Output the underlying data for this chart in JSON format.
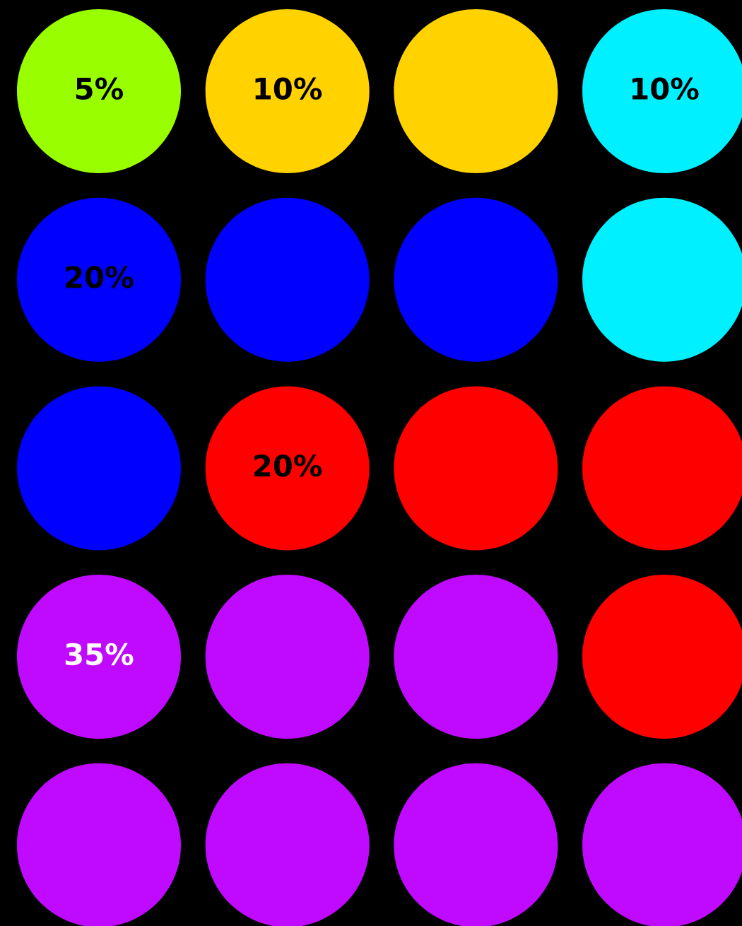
{
  "chart_data": {
    "type": "other",
    "categories": [
      null,
      null,
      null,
      null,
      null,
      null
    ],
    "values": [
      5,
      10,
      10,
      20,
      20,
      35
    ],
    "colors": [
      "#99ff00",
      "#ffd200",
      "#00f0ff",
      "#0000ff",
      "#ff0000",
      "#c00aff"
    ],
    "value_labels": [
      "5%",
      "10%",
      "10%",
      "20%",
      "20%",
      "35%"
    ]
  }
}
